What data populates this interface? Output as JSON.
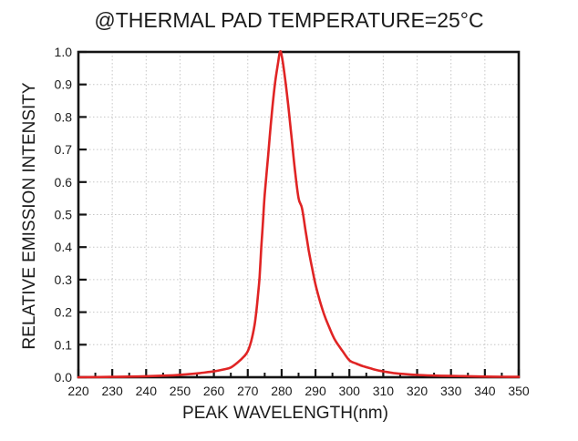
{
  "chart_data": {
    "type": "line",
    "title": "@THERMAL PAD TEMPERATURE=25°C",
    "xlabel": "PEAK WAVELENGTH(nm)",
    "ylabel": "RELATIVE EMISSION INTENSITY",
    "xlim": [
      220,
      350
    ],
    "ylim": [
      0.0,
      1.0
    ],
    "x_major_ticks": [
      220,
      230,
      240,
      250,
      260,
      270,
      280,
      290,
      300,
      310,
      320,
      330,
      340,
      350
    ],
    "x_tick_labels": [
      "220",
      "230",
      "240",
      "250",
      "260",
      "270",
      "280",
      "290",
      "300",
      "310",
      "320",
      "330",
      "340",
      "350"
    ],
    "x_minor_step": 5,
    "y_major_ticks": [
      0.0,
      0.1,
      0.2,
      0.3,
      0.4,
      0.5,
      0.6,
      0.7,
      0.8,
      0.9,
      1.0
    ],
    "y_tick_labels": [
      "0.0",
      "0.1",
      "0.2",
      "0.3",
      "0.4",
      "0.5",
      "0.6",
      "0.7",
      "0.8",
      "0.9",
      "1.0"
    ],
    "grid": {
      "style": "dotted",
      "on_major_ticks": true,
      "color": "#c6c6c6"
    },
    "legend": "none",
    "peak": {
      "wavelength_nm": 279.5,
      "intensity": 1.0,
      "fwhm_nm": 12
    },
    "colors": {
      "curve": "#e02424",
      "frame": "#141414",
      "text": "#1b1b1b",
      "background": "#ffffff"
    },
    "series": [
      {
        "name": "relative emission intensity",
        "color": "#e02424",
        "x": [
          220,
          230,
          240,
          248,
          252,
          256,
          260,
          263,
          265,
          267,
          269,
          270,
          271,
          272,
          272.5,
          273,
          273.5,
          274,
          274.5,
          275,
          276,
          277,
          278,
          279,
          279.5,
          280,
          281,
          282,
          283,
          284,
          285,
          286,
          287,
          288,
          289,
          290,
          291,
          292,
          293,
          294,
          295,
          296,
          297,
          298,
          300,
          302,
          304,
          306,
          308,
          310,
          313,
          316,
          320,
          325,
          330,
          335,
          340,
          345,
          350
        ],
        "y": [
          0,
          0.001,
          0.003,
          0.006,
          0.009,
          0.013,
          0.018,
          0.024,
          0.03,
          0.045,
          0.065,
          0.08,
          0.11,
          0.16,
          0.2,
          0.25,
          0.31,
          0.4,
          0.48,
          0.56,
          0.68,
          0.8,
          0.9,
          0.97,
          1.0,
          0.99,
          0.92,
          0.83,
          0.73,
          0.63,
          0.55,
          0.52,
          0.455,
          0.39,
          0.335,
          0.285,
          0.245,
          0.21,
          0.18,
          0.155,
          0.13,
          0.11,
          0.095,
          0.08,
          0.052,
          0.042,
          0.034,
          0.028,
          0.022,
          0.018,
          0.013,
          0.01,
          0.007,
          0.005,
          0.004,
          0.003,
          0.002,
          0.0015,
          0.001
        ]
      }
    ]
  }
}
